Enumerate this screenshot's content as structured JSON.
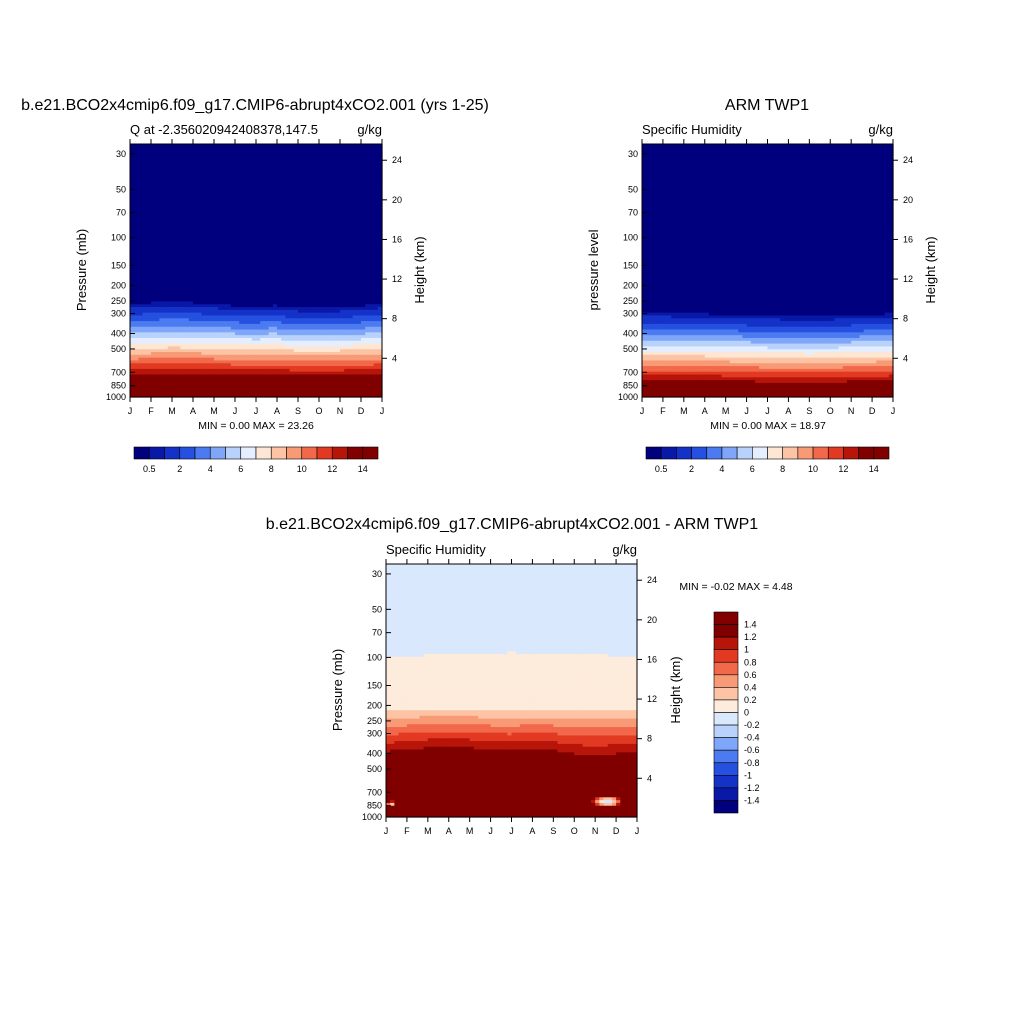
{
  "panel_a": {
    "title": "b.e21.BCO2x4cmip6.f09_g17.CMIP6-abrupt4xCO2.001 (yrs 1-25)",
    "subtitle_left": "Q at -2.356020942408378,147.5",
    "subtitle_right": "g/kg",
    "ylabel": "Pressure (mb)",
    "ylabel_right": "Height (km)",
    "stats": "MIN =   0.00 MAX =  23.26"
  },
  "panel_b": {
    "title": "ARM TWP1",
    "subtitle_left": "Specific Humidity",
    "subtitle_right": "g/kg",
    "ylabel": "pressure level",
    "ylabel_right": "Height (km)",
    "stats": "MIN =   0.00 MAX =  18.97"
  },
  "panel_c": {
    "title": "b.e21.BCO2x4cmip6.f09_g17.CMIP6-abrupt4xCO2.001 - ARM TWP1",
    "subtitle_left": "Specific Humidity",
    "subtitle_right": "g/kg",
    "ylabel": "Pressure (mb)",
    "ylabel_right": "Height (km)",
    "stats": "MIN =  -0.02 MAX =   4.48"
  },
  "colors": {
    "seq": [
      "#00007f",
      "#0a18a8",
      "#1532c8",
      "#2550e0",
      "#4c7af0",
      "#7fa6f8",
      "#b8d2fc",
      "#e4eefe",
      "#fde6d4",
      "#fcc4a4",
      "#f99a76",
      "#f2684a",
      "#e23a22",
      "#b8150a",
      "#800000"
    ],
    "div": [
      "#00007f",
      "#0a18a8",
      "#1532c8",
      "#2550e0",
      "#4c7af0",
      "#7fa6f8",
      "#b8d2fc",
      "#d9e8fd",
      "#fdebdb",
      "#fcc4a4",
      "#f99a76",
      "#f2684a",
      "#e23a22",
      "#b8150a",
      "#800000"
    ]
  },
  "chart_data": [
    {
      "type": "heatmap",
      "panel": "panel_a",
      "x_months": [
        "J",
        "F",
        "M",
        "A",
        "M",
        "J",
        "J",
        "A",
        "S",
        "O",
        "N",
        "D",
        "J"
      ],
      "pressure_ticks": [
        30,
        50,
        70,
        100,
        150,
        200,
        250,
        300,
        400,
        500,
        700,
        850,
        1000
      ],
      "height_ticks": [
        4,
        8,
        12,
        16,
        20,
        24
      ],
      "pressure_range": [
        26,
        1000
      ],
      "levels": [
        0.5,
        1,
        2,
        3,
        4,
        5,
        6,
        7,
        8,
        9,
        10,
        11,
        12,
        13,
        14
      ],
      "colorbar_labels": [
        "0.5",
        "2",
        "4",
        "6",
        "8",
        "10",
        "12",
        "14"
      ],
      "units": "g/kg",
      "min": 0.0,
      "max": 23.26,
      "level_boundaries_mb": {
        "months": [
          1,
          2,
          3,
          4,
          5,
          6,
          7,
          8,
          9,
          10,
          11,
          12,
          13
        ],
        "top_of_moist_layer_mb": [
          255,
          250,
          248,
          250,
          255,
          262,
          262,
          260,
          268,
          270,
          268,
          262,
          255
        ],
        "surface_max_mb": [
          880,
          875,
          870,
          870,
          873,
          878,
          882,
          883,
          884,
          884,
          882,
          880,
          880
        ]
      }
    },
    {
      "type": "heatmap",
      "panel": "panel_b",
      "x_months": [
        "J",
        "F",
        "M",
        "A",
        "M",
        "J",
        "J",
        "A",
        "S",
        "O",
        "N",
        "D",
        "J"
      ],
      "pressure_ticks": [
        30,
        50,
        70,
        100,
        150,
        200,
        250,
        300,
        400,
        500,
        700,
        850,
        1000
      ],
      "height_ticks": [
        4,
        8,
        12,
        16,
        20,
        24
      ],
      "pressure_range": [
        26,
        1000
      ],
      "levels": [
        0.5,
        1,
        2,
        3,
        4,
        5,
        6,
        7,
        8,
        9,
        10,
        11,
        12,
        13,
        14
      ],
      "colorbar_labels": [
        "0.5",
        "2",
        "4",
        "6",
        "8",
        "10",
        "12",
        "14"
      ],
      "units": "g/kg",
      "min": 0.0,
      "max": 18.97,
      "level_boundaries_mb": {
        "months": [
          1,
          2,
          3,
          4,
          5,
          6,
          7,
          8,
          9,
          10,
          11,
          12,
          13
        ],
        "top_of_moist_layer_mb": [
          290,
          290,
          292,
          294,
          296,
          300,
          302,
          304,
          305,
          304,
          300,
          298,
          292
        ],
        "surface_max_mb": [
          920,
          915,
          912,
          915,
          922,
          930,
          935,
          940,
          942,
          938,
          930,
          925,
          920
        ]
      }
    },
    {
      "type": "heatmap",
      "panel": "panel_c",
      "x_months": [
        "J",
        "F",
        "M",
        "A",
        "M",
        "J",
        "J",
        "A",
        "S",
        "O",
        "N",
        "D",
        "J"
      ],
      "pressure_ticks": [
        30,
        50,
        70,
        100,
        150,
        200,
        250,
        300,
        400,
        500,
        700,
        850,
        1000
      ],
      "height_ticks": [
        4,
        8,
        12,
        16,
        20,
        24
      ],
      "pressure_range": [
        26,
        1000
      ],
      "levels": [
        -1.4,
        -1.2,
        -1,
        -0.8,
        -0.6,
        -0.4,
        -0.2,
        0,
        0.2,
        0.4,
        0.6,
        0.8,
        1,
        1.2,
        1.4
      ],
      "colorbar_labels": [
        "-1.4",
        "-1.2",
        "-1",
        "-0.8",
        "-0.6",
        "-0.4",
        "-0.2",
        "0",
        "0.2",
        "0.4",
        "0.6",
        "0.8",
        "1",
        "1.2",
        "1.4"
      ],
      "units": "g/kg",
      "min": -0.02,
      "max": 4.48,
      "level_boundaries_mb": {
        "months": [
          1,
          2,
          3,
          4,
          5,
          6,
          7,
          8,
          9,
          10,
          11,
          12,
          13
        ],
        "zero_contour_mb": [
          100,
          98,
          97,
          96,
          95,
          94,
          93,
          94,
          95,
          96,
          96,
          98,
          100
        ],
        "top_of_large_positive_mb": [
          450,
          440,
          420,
          410,
          420,
          440,
          445,
          430,
          440,
          470,
          480,
          470,
          450
        ]
      }
    }
  ]
}
